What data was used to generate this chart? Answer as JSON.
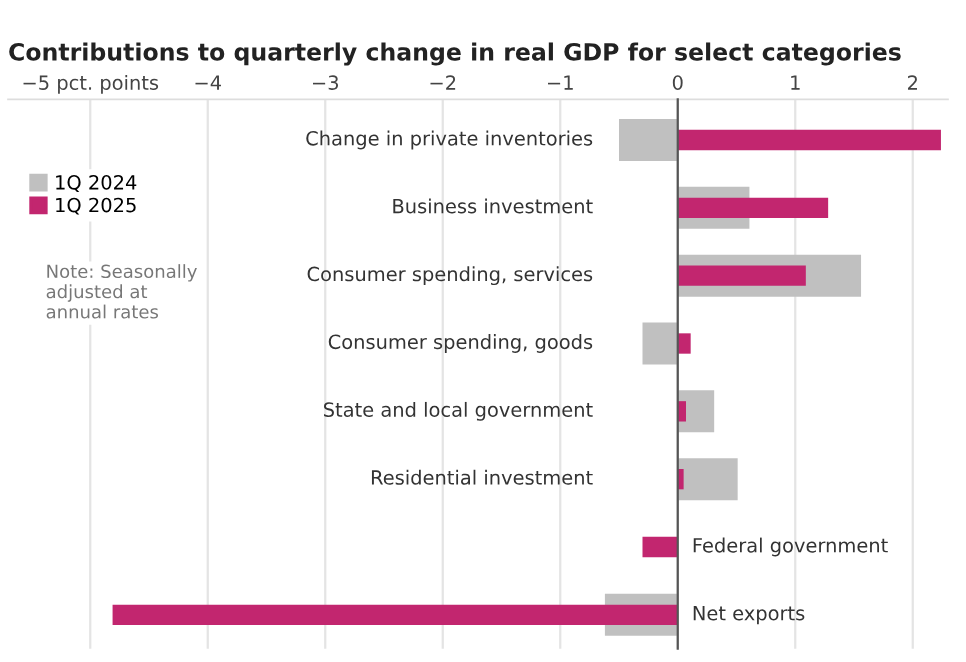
{
  "chart_data": {
    "type": "bar",
    "orientation": "horizontal",
    "title": "Contributions to quarterly change in real GDP for select categories",
    "categories": [
      "Change in private inventories",
      "Business investment",
      "Consumer spending, services",
      "Consumer spending, goods",
      "State and local government",
      "Residential investment",
      "Federal government",
      "Net exports"
    ],
    "series": [
      {
        "name": "1Q 2024",
        "color": "#c0c0c0",
        "values": [
          -0.5,
          0.61,
          1.56,
          -0.3,
          0.31,
          0.51,
          0,
          -0.62
        ]
      },
      {
        "name": "1Q 2025",
        "color": "#c2266f",
        "values": [
          2.24,
          1.28,
          1.09,
          0.11,
          0.07,
          0.05,
          -0.3,
          -4.81
        ]
      }
    ],
    "xlim": [
      -5.7,
      2.3
    ],
    "xticks": [
      {
        "value": -5,
        "label": "−5 pct. points"
      },
      {
        "value": -4,
        "label": "−4"
      },
      {
        "value": -3,
        "label": "−3"
      },
      {
        "value": -2,
        "label": "−2"
      },
      {
        "value": -1,
        "label": "−1"
      },
      0,
      1,
      2
    ],
    "grid": "x",
    "legend": "top left",
    "annotations": [
      "Note: Seasonally adjusted at annual rates"
    ]
  }
}
